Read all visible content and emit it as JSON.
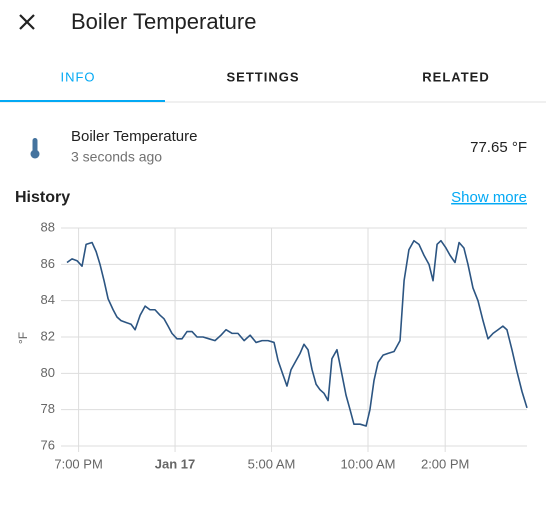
{
  "header": {
    "title": "Boiler Temperature"
  },
  "tabs": [
    "INFO",
    "SETTINGS",
    "RELATED"
  ],
  "entity": {
    "name": "Boiler Temperature",
    "last_changed": "3 seconds ago",
    "state": "77.65 °F"
  },
  "history": {
    "title": "History",
    "show_more": "Show more"
  },
  "chart_data": {
    "type": "line",
    "ylabel": "°F",
    "color": "#2c5582",
    "grid": true,
    "x": [
      -5.6,
      -5.34,
      -5.08,
      -4.82,
      -4.61,
      -4.3,
      -4.09,
      -3.89,
      -3.68,
      -3.47,
      -3.21,
      -3.01,
      -2.8,
      -2.54,
      -2.28,
      -2.07,
      -1.81,
      -1.55,
      -1.3,
      -1.04,
      -0.78,
      -0.57,
      -0.36,
      -0.16,
      0.1,
      0.36,
      0.62,
      0.88,
      1.14,
      1.45,
      1.76,
      2.07,
      2.38,
      2.64,
      2.95,
      3.26,
      3.58,
      3.89,
      4.2,
      4.51,
      4.82,
      5.13,
      5.34,
      5.6,
      5.8,
      6.01,
      6.27,
      6.48,
      6.68,
      6.89,
      7.1,
      7.31,
      7.51,
      7.72,
      7.93,
      8.13,
      8.39,
      8.6,
      8.86,
      9.07,
      9.27,
      9.59,
      9.9,
      10.1,
      10.31,
      10.52,
      10.78,
      11.04,
      11.35,
      11.66,
      11.87,
      12.12,
      12.38,
      12.64,
      12.9,
      13.16,
      13.37,
      13.58,
      13.78,
      14.04,
      14.25,
      14.51,
      14.72,
      14.97,
      15.18,
      15.44,
      15.7,
      15.96,
      16.22,
      16.48,
      16.74,
      16.99,
      17.2,
      17.46,
      17.72,
      17.98,
      18.24
    ],
    "values": [
      86.1,
      86.3,
      86.2,
      85.9,
      87.1,
      87.2,
      86.7,
      86.0,
      85.1,
      84.1,
      83.5,
      83.1,
      82.9,
      82.8,
      82.7,
      82.4,
      83.2,
      83.7,
      83.5,
      83.5,
      83.2,
      83.0,
      82.6,
      82.2,
      81.9,
      81.9,
      82.3,
      82.3,
      82.0,
      82.0,
      81.9,
      81.8,
      82.1,
      82.4,
      82.2,
      82.2,
      81.8,
      82.1,
      81.7,
      81.8,
      81.8,
      81.7,
      80.7,
      79.9,
      79.3,
      80.2,
      80.7,
      81.1,
      81.6,
      81.3,
      80.2,
      79.4,
      79.1,
      78.9,
      78.5,
      80.8,
      81.3,
      80.2,
      78.8,
      78.0,
      77.2,
      77.2,
      77.1,
      78.0,
      79.6,
      80.6,
      81.0,
      81.1,
      81.2,
      81.8,
      85.1,
      86.8,
      87.3,
      87.1,
      86.5,
      86.0,
      85.1,
      87.1,
      87.3,
      86.9,
      86.5,
      86.1,
      87.2,
      86.9,
      86.0,
      84.7,
      84.0,
      82.9,
      81.9,
      82.2,
      82.4,
      82.6,
      82.4,
      81.3,
      80.1,
      79.0,
      78.1
    ],
    "xlim": [
      -5.6,
      18.24
    ],
    "xticks": [
      {
        "value": -5,
        "label": "7:00 PM"
      },
      {
        "value": 0,
        "label": "Jan 17"
      },
      {
        "value": 5,
        "label": "5:00 AM"
      },
      {
        "value": 10,
        "label": "10:00 AM"
      },
      {
        "value": 14,
        "label": "2:00 PM"
      }
    ],
    "ylim": [
      76,
      88
    ],
    "yticks": [
      76,
      78,
      80,
      82,
      84,
      86,
      88
    ]
  }
}
